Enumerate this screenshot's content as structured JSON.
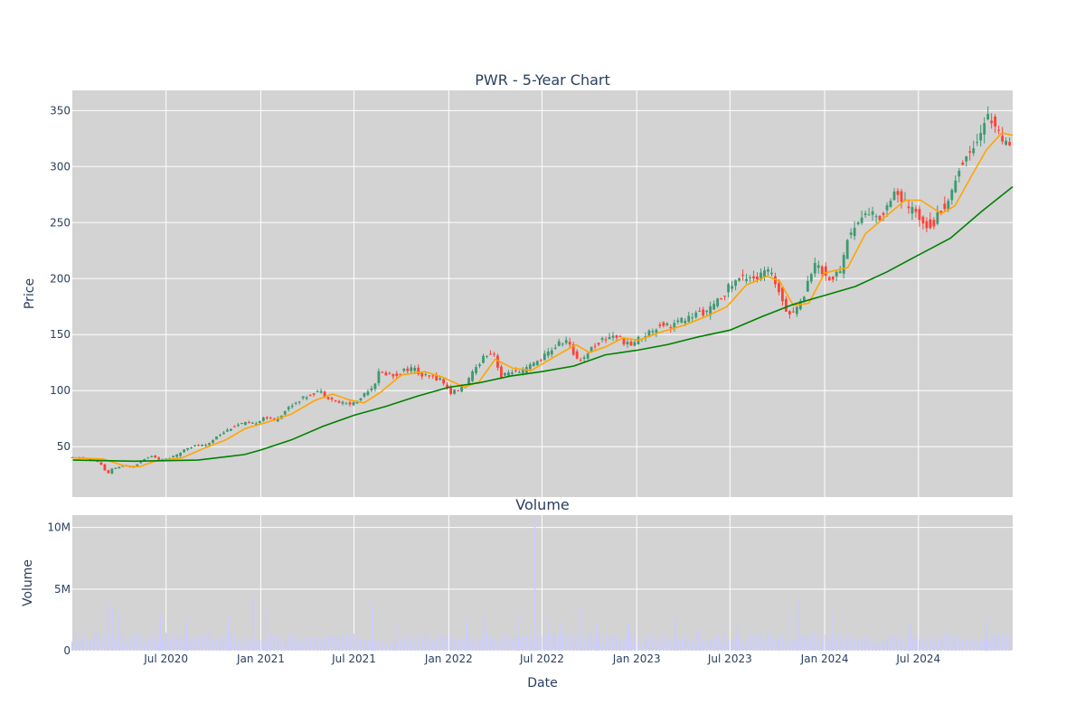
{
  "chart_data": [
    {
      "type": "candlestick",
      "title": "PWR - 5-Year Chart",
      "ylabel": "Price",
      "ylim": [
        5,
        368
      ],
      "y_ticks": [
        50,
        100,
        150,
        200,
        250,
        300,
        350
      ],
      "x_range": [
        "2020-01-01",
        "2024-12-31"
      ],
      "grid": true,
      "background": "#d3d3d3",
      "colors": {
        "up": "#3d9970",
        "down": "#ff4136",
        "ma_short": "#ffa500",
        "ma_long": "#008000"
      },
      "series": [
        {
          "kind": "candles",
          "path_points": [
            [
              "2020-01-02",
              40
            ],
            [
              "2020-02-01",
              40
            ],
            [
              "2020-02-15",
              38
            ],
            [
              "2020-03-01",
              36
            ],
            [
              "2020-03-16",
              25
            ],
            [
              "2020-03-25",
              30
            ],
            [
              "2020-04-15",
              33
            ],
            [
              "2020-05-05",
              32
            ],
            [
              "2020-05-25",
              39
            ],
            [
              "2020-06-10",
              42
            ],
            [
              "2020-06-25",
              38
            ],
            [
              "2020-07-15",
              40
            ],
            [
              "2020-08-01",
              43
            ],
            [
              "2020-08-15",
              49
            ],
            [
              "2020-09-05",
              51
            ],
            [
              "2020-09-25",
              51
            ],
            [
              "2020-10-15",
              60
            ],
            [
              "2020-11-01",
              64
            ],
            [
              "2020-11-15",
              68
            ],
            [
              "2020-12-05",
              71
            ],
            [
              "2020-12-25",
              70
            ],
            [
              "2021-01-15",
              77
            ],
            [
              "2021-02-01",
              73
            ],
            [
              "2021-02-15",
              78
            ],
            [
              "2021-03-05",
              86
            ],
            [
              "2021-03-25",
              92
            ],
            [
              "2021-04-15",
              97
            ],
            [
              "2021-05-01",
              100
            ],
            [
              "2021-05-15",
              95
            ],
            [
              "2021-06-05",
              90
            ],
            [
              "2021-06-25",
              88
            ],
            [
              "2021-07-15",
              90
            ],
            [
              "2021-08-01",
              100
            ],
            [
              "2021-08-15",
              104
            ],
            [
              "2021-08-25",
              116
            ],
            [
              "2021-09-10",
              115
            ],
            [
              "2021-09-25",
              113
            ],
            [
              "2021-10-15",
              119
            ],
            [
              "2021-11-01",
              120
            ],
            [
              "2021-11-15",
              113
            ],
            [
              "2021-12-05",
              112
            ],
            [
              "2021-12-25",
              110
            ],
            [
              "2022-01-10",
              98
            ],
            [
              "2022-01-25",
              100
            ],
            [
              "2022-02-10",
              105
            ],
            [
              "2022-03-01",
              120
            ],
            [
              "2022-03-20",
              133
            ],
            [
              "2022-04-05",
              134
            ],
            [
              "2022-04-20",
              112
            ],
            [
              "2022-05-10",
              118
            ],
            [
              "2022-05-25",
              115
            ],
            [
              "2022-06-15",
              122
            ],
            [
              "2022-07-05",
              128
            ],
            [
              "2022-07-25",
              136
            ],
            [
              "2022-08-10",
              142
            ],
            [
              "2022-08-25",
              145
            ],
            [
              "2022-09-10",
              130
            ],
            [
              "2022-09-25",
              128
            ],
            [
              "2022-10-15",
              140
            ],
            [
              "2022-11-05",
              146
            ],
            [
              "2022-11-25",
              150
            ],
            [
              "2022-12-10",
              145
            ],
            [
              "2022-12-25",
              140
            ],
            [
              "2023-01-10",
              146
            ],
            [
              "2023-01-25",
              150
            ],
            [
              "2023-02-10",
              155
            ],
            [
              "2023-02-25",
              160
            ],
            [
              "2023-03-15",
              158
            ],
            [
              "2023-04-01",
              162
            ],
            [
              "2023-04-20",
              165
            ],
            [
              "2023-05-10",
              170
            ],
            [
              "2023-05-25",
              170
            ],
            [
              "2023-06-15",
              180
            ],
            [
              "2023-07-05",
              192
            ],
            [
              "2023-07-25",
              200
            ],
            [
              "2023-08-15",
              203
            ],
            [
              "2023-09-01",
              200
            ],
            [
              "2023-09-15",
              208
            ],
            [
              "2023-10-01",
              200
            ],
            [
              "2023-10-15",
              185
            ],
            [
              "2023-10-30",
              168
            ],
            [
              "2023-11-10",
              172
            ],
            [
              "2023-11-25",
              180
            ],
            [
              "2023-12-10",
              205
            ],
            [
              "2023-12-25",
              214
            ],
            [
              "2024-01-10",
              202
            ],
            [
              "2024-01-25",
              200
            ],
            [
              "2024-02-10",
              210
            ],
            [
              "2024-02-20",
              236
            ],
            [
              "2024-03-05",
              245
            ],
            [
              "2024-03-20",
              255
            ],
            [
              "2024-04-05",
              260
            ],
            [
              "2024-04-20",
              252
            ],
            [
              "2024-05-05",
              262
            ],
            [
              "2024-05-20",
              280
            ],
            [
              "2024-06-05",
              270
            ],
            [
              "2024-06-20",
              262
            ],
            [
              "2024-07-05",
              258
            ],
            [
              "2024-07-20",
              250
            ],
            [
              "2024-08-05",
              248
            ],
            [
              "2024-08-20",
              262
            ],
            [
              "2024-09-05",
              268
            ],
            [
              "2024-09-20",
              295
            ],
            [
              "2024-10-05",
              305
            ],
            [
              "2024-10-20",
              318
            ],
            [
              "2024-11-05",
              330
            ],
            [
              "2024-11-20",
              345
            ],
            [
              "2024-12-05",
              338
            ],
            [
              "2024-12-20",
              320
            ],
            [
              "2024-12-31",
              315
            ]
          ]
        },
        {
          "kind": "line",
          "color_key": "ma_short",
          "points": [
            [
              "2020-01-02",
              40
            ],
            [
              "2020-03-01",
              39
            ],
            [
              "2020-04-10",
              33
            ],
            [
              "2020-05-10",
              32
            ],
            [
              "2020-06-10",
              37
            ],
            [
              "2020-08-01",
              40
            ],
            [
              "2020-09-15",
              49
            ],
            [
              "2020-10-25",
              56
            ],
            [
              "2020-12-01",
              66
            ],
            [
              "2021-01-15",
              72
            ],
            [
              "2021-03-01",
              79
            ],
            [
              "2021-04-15",
              91
            ],
            [
              "2021-05-20",
              97
            ],
            [
              "2021-06-20",
              92
            ],
            [
              "2021-07-20",
              89
            ],
            [
              "2021-08-20",
              98
            ],
            [
              "2021-10-01",
              114
            ],
            [
              "2021-11-15",
              117
            ],
            [
              "2021-12-20",
              112
            ],
            [
              "2022-02-01",
              103
            ],
            [
              "2022-03-01",
              108
            ],
            [
              "2022-04-01",
              128
            ],
            [
              "2022-05-05",
              120
            ],
            [
              "2022-06-10",
              118
            ],
            [
              "2022-08-01",
              132
            ],
            [
              "2022-09-05",
              141
            ],
            [
              "2022-10-01",
              134
            ],
            [
              "2022-11-01",
              139
            ],
            [
              "2022-12-05",
              147
            ],
            [
              "2023-01-05",
              145
            ],
            [
              "2023-02-15",
              152
            ],
            [
              "2023-04-01",
              158
            ],
            [
              "2023-05-15",
              166
            ],
            [
              "2023-06-25",
              175
            ],
            [
              "2023-08-01",
              194
            ],
            [
              "2023-09-10",
              202
            ],
            [
              "2023-10-05",
              198
            ],
            [
              "2023-11-01",
              176
            ],
            [
              "2023-12-01",
              178
            ],
            [
              "2024-01-01",
              205
            ],
            [
              "2024-02-15",
              210
            ],
            [
              "2024-03-20",
              240
            ],
            [
              "2024-04-25",
              254
            ],
            [
              "2024-06-05",
              270
            ],
            [
              "2024-07-05",
              270
            ],
            [
              "2024-08-15",
              258
            ],
            [
              "2024-09-10",
              265
            ],
            [
              "2024-10-10",
              290
            ],
            [
              "2024-11-10",
              315
            ],
            [
              "2024-12-10",
              330
            ],
            [
              "2024-12-31",
              328
            ]
          ]
        },
        {
          "kind": "line",
          "color_key": "ma_long",
          "points": [
            [
              "2020-01-02",
              38
            ],
            [
              "2020-05-01",
              37
            ],
            [
              "2020-09-01",
              38
            ],
            [
              "2020-12-01",
              43
            ],
            [
              "2021-01-01",
              47
            ],
            [
              "2021-03-01",
              56
            ],
            [
              "2021-05-01",
              68
            ],
            [
              "2021-07-01",
              78
            ],
            [
              "2021-09-01",
              86
            ],
            [
              "2021-11-01",
              95
            ],
            [
              "2022-01-01",
              103
            ],
            [
              "2022-03-01",
              107
            ],
            [
              "2022-05-01",
              113
            ],
            [
              "2022-07-01",
              117
            ],
            [
              "2022-09-01",
              122
            ],
            [
              "2022-11-01",
              132
            ],
            [
              "2023-01-01",
              136
            ],
            [
              "2023-03-01",
              141
            ],
            [
              "2023-05-01",
              148
            ],
            [
              "2023-07-01",
              154
            ],
            [
              "2023-09-01",
              166
            ],
            [
              "2023-11-01",
              177
            ],
            [
              "2024-01-01",
              185
            ],
            [
              "2024-03-01",
              193
            ],
            [
              "2024-05-01",
              206
            ],
            [
              "2024-07-01",
              221
            ],
            [
              "2024-09-01",
              236
            ],
            [
              "2024-11-01",
              260
            ],
            [
              "2024-12-31",
              282
            ]
          ]
        }
      ]
    },
    {
      "type": "bar",
      "title": "Volume",
      "ylabel": "Volume",
      "xlabel": "Date",
      "ylim": [
        0,
        11000000
      ],
      "y_ticks": [
        0,
        5000000,
        10000000
      ],
      "y_tick_labels": [
        "0",
        "5M",
        "10M"
      ],
      "x_ticks": [
        "2020-07-01",
        "2021-01-01",
        "2021-07-01",
        "2022-01-01",
        "2022-07-01",
        "2023-01-01",
        "2023-07-01",
        "2024-01-01",
        "2024-07-01"
      ],
      "x_tick_labels": [
        "Jul 2020",
        "Jan 2021",
        "Jul 2021",
        "Jan 2022",
        "Jul 2022",
        "Jan 2023",
        "Jul 2023",
        "Jan 2024",
        "Jul 2024"
      ],
      "bar_color": "#ccccff",
      "base_volume": 1200000,
      "spikes": [
        [
          "2020-03-10",
          3900000
        ],
        [
          "2020-03-20",
          3500000
        ],
        [
          "2020-04-01",
          2800000
        ],
        [
          "2020-06-20",
          2900000
        ],
        [
          "2020-08-10",
          2600000
        ],
        [
          "2020-10-30",
          2800000
        ],
        [
          "2020-12-18",
          4500000
        ],
        [
          "2021-01-10",
          3300000
        ],
        [
          "2021-08-06",
          3800000
        ],
        [
          "2021-09-20",
          2400000
        ],
        [
          "2022-02-05",
          2600000
        ],
        [
          "2022-03-10",
          2900000
        ],
        [
          "2022-05-15",
          3200000
        ],
        [
          "2022-06-17",
          10800000
        ],
        [
          "2022-07-15",
          2700000
        ],
        [
          "2022-08-05",
          2400000
        ],
        [
          "2022-09-15",
          3600000
        ],
        [
          "2022-10-15",
          2300000
        ],
        [
          "2022-12-16",
          2200000
        ],
        [
          "2023-03-17",
          2800000
        ],
        [
          "2023-07-15",
          2400000
        ],
        [
          "2023-10-25",
          2900000
        ],
        [
          "2023-11-10",
          4200000
        ],
        [
          "2024-01-15",
          3100000
        ],
        [
          "2024-06-15",
          2200000
        ],
        [
          "2024-11-10",
          2600000
        ]
      ]
    }
  ]
}
